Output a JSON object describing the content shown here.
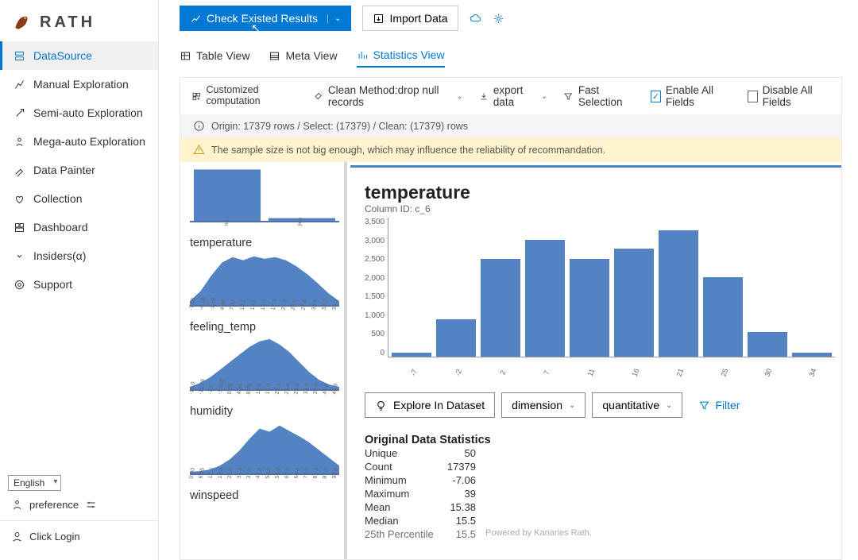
{
  "brand": "RATH",
  "sidebar": {
    "items": [
      {
        "label": "DataSource",
        "icon": "database"
      },
      {
        "label": "Manual Exploration",
        "icon": "chart"
      },
      {
        "label": "Semi-auto Exploration",
        "icon": "wand"
      },
      {
        "label": "Mega-auto Exploration",
        "icon": "robot"
      },
      {
        "label": "Data Painter",
        "icon": "brush"
      },
      {
        "label": "Collection",
        "icon": "heart"
      },
      {
        "label": "Dashboard",
        "icon": "grid"
      },
      {
        "label": "Insiders(α)",
        "icon": "chev"
      },
      {
        "label": "Support",
        "icon": "support"
      }
    ],
    "active": 0,
    "language": "English",
    "preference": "preference",
    "login": "Click Login"
  },
  "toolbar_top": {
    "check_results": "Check Existed Results",
    "import_data": "Import Data"
  },
  "tabs": [
    {
      "label": "Table View"
    },
    {
      "label": "Meta View"
    },
    {
      "label": "Statistics View"
    }
  ],
  "tabs_active": 2,
  "panel_toolbar": {
    "customized": "Customized computation",
    "clean_method": "Clean Method:drop null records",
    "export": "export data",
    "fast_selection": "Fast Selection",
    "enable_all": "Enable All Fields",
    "disable_all": "Disable All Fields"
  },
  "info": "Origin: 17379 rows / Select: (17379) / Clean: (17379) rows",
  "warning": "The sample size is not big enough, which may influence the reliability of recommandation.",
  "thumbs": [
    {
      "label": "",
      "type": "bar-cat",
      "cats": [
        "no",
        "yes"
      ],
      "vals": [
        95,
        5
      ],
      "color": "#5383c3"
    },
    {
      "label": "temperature",
      "type": "area",
      "ticks": [
        "-7.06",
        "-4.18",
        "-1.58",
        "4.46",
        "7.33",
        "10.1",
        "13.1",
        "16.0",
        "17.4",
        "21.7",
        "24.6",
        "27.5",
        "30.4",
        "33.2",
        "36.1"
      ],
      "path_y": [
        5,
        18,
        38,
        55,
        62,
        58,
        63,
        60,
        62,
        58,
        50,
        40,
        28,
        15,
        5
      ],
      "color": "#5383c3"
    },
    {
      "label": "feeling_temp",
      "type": "area",
      "ticks": [
        "-16.0",
        "-11.79",
        "-7.5",
        "-3.500",
        "0.75",
        "4.36",
        "8.75",
        "12.9",
        "17.0",
        "21.1",
        "25.4",
        "29.4",
        "33.5",
        "37.6",
        "41.8",
        "45.9"
      ],
      "path_y": [
        3,
        8,
        15,
        25,
        35,
        45,
        55,
        62,
        65,
        58,
        48,
        35,
        22,
        12,
        6,
        3
      ],
      "color": "#5383c3"
    },
    {
      "label": "humidity",
      "type": "area",
      "ticks": [
        "0.00",
        "6.25",
        "12.5",
        "18.8",
        "25.0",
        "31.3",
        "37.5",
        "43.8",
        "50.0",
        "56.2",
        "62.5",
        "68.8",
        "75.0",
        "81.3",
        "87.5",
        "93.8"
      ],
      "path_y": [
        2,
        3,
        5,
        10,
        18,
        30,
        45,
        58,
        54,
        62,
        55,
        48,
        40,
        30,
        20,
        10
      ],
      "color": "#5383c3"
    },
    {
      "label": "winspeed",
      "type": "label-only"
    }
  ],
  "detail": {
    "title": "temperature",
    "column_id_label": "Column ID: c_6",
    "histogram": {
      "type": "bar",
      "y_ticks": [
        "3,500",
        "3,000",
        "2,500",
        "2,000",
        "1,500",
        "1,000",
        "500",
        "0"
      ],
      "y_max": 3500,
      "x_ticks": [
        "-7",
        "-2",
        "2",
        "7",
        "11",
        "16",
        "21",
        "25",
        "30",
        "34"
      ],
      "values": [
        100,
        930,
        2450,
        2930,
        2450,
        2700,
        3170,
        1990,
        620,
        90
      ],
      "bar_color": "#5383c3",
      "axis_color": "#999999"
    },
    "actions": {
      "explore": "Explore In Dataset",
      "dim": "dimension",
      "quant": "quantitative",
      "filter": "Filter"
    },
    "stats_title": "Original Data Statistics",
    "stats": [
      {
        "k": "Unique",
        "v": "50"
      },
      {
        "k": "Count",
        "v": "17379"
      },
      {
        "k": "Minimum",
        "v": "-7.06"
      },
      {
        "k": "Maximum",
        "v": "39"
      },
      {
        "k": "Mean",
        "v": "15.38"
      },
      {
        "k": "Median",
        "v": "15.5"
      },
      {
        "k": "25th Percentile",
        "v": "15.5"
      }
    ],
    "powered": "Powered by Kanaries Rath."
  }
}
